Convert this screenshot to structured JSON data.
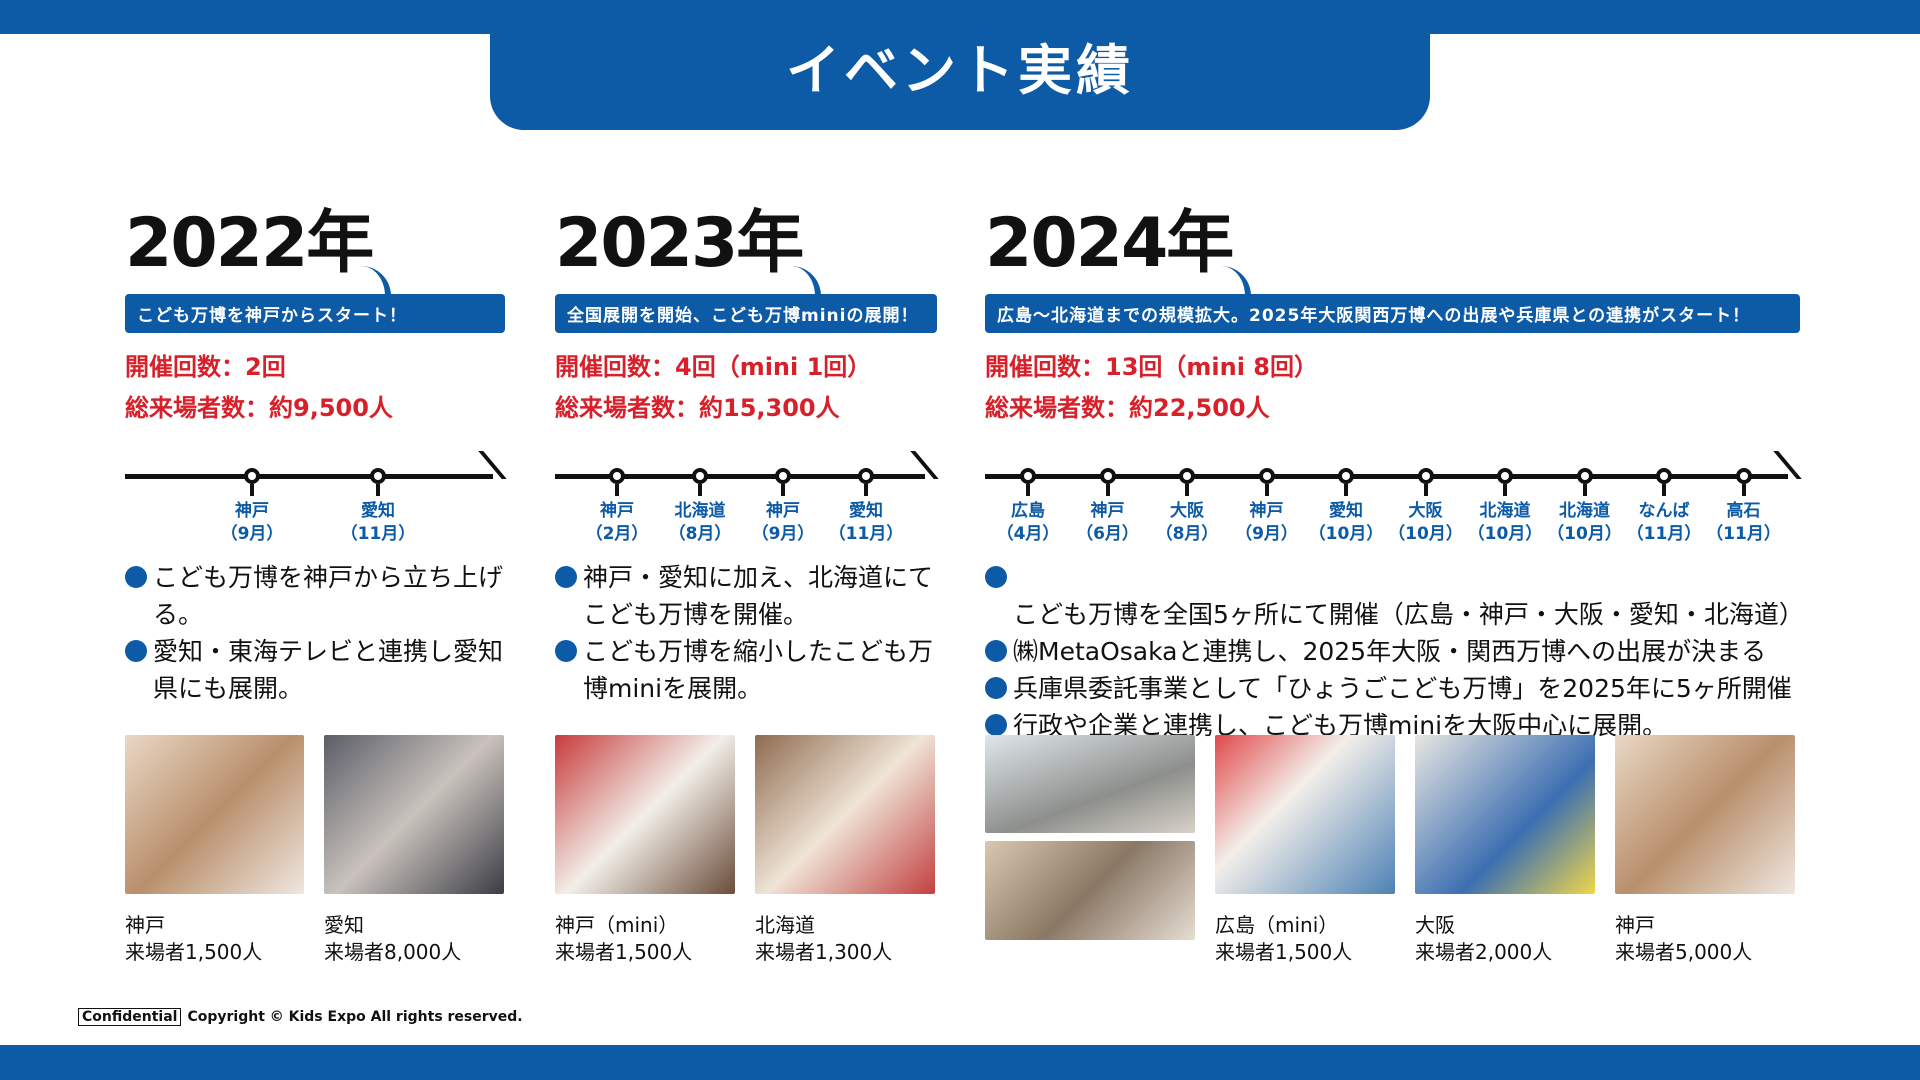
{
  "title": "イベント実績",
  "colors": {
    "brand": "#0d5aa7",
    "accent_red": "#d8202a"
  },
  "columns": [
    {
      "year": "2022年",
      "banner": "こども万博を神戸からスタート！",
      "stats": [
        "開催回数：2回",
        "総来場者数：約9,500人"
      ],
      "timeline": [
        {
          "city": "神戸",
          "month": "（9月）"
        },
        {
          "city": "愛知",
          "month": "（11月）"
        }
      ],
      "bullets": [
        "こども万博を神戸から立ち上げる。",
        "愛知・東海テレビと連携し愛知県にも展開。"
      ],
      "photos": [
        {
          "place": "神戸",
          "visitors": "来場者1,500人"
        },
        {
          "place": "愛知",
          "visitors": "来場者8,000人"
        }
      ]
    },
    {
      "year": "2023年",
      "banner": "全国展開を開始、こども万博miniの展開！",
      "stats": [
        "開催回数：4回（mini 1回）",
        "総来場者数：約15,300人"
      ],
      "timeline": [
        {
          "city": "神戸",
          "month": "（2月）"
        },
        {
          "city": "北海道",
          "month": "（8月）"
        },
        {
          "city": "神戸",
          "month": "（9月）"
        },
        {
          "city": "愛知",
          "month": "（11月）"
        }
      ],
      "bullets": [
        "神戸・愛知に加え、北海道にてこども万博を開催。",
        "こども万博を縮小したこども万博miniを展開。"
      ],
      "photos": [
        {
          "place": "神戸（mini）",
          "visitors": "来場者1,500人"
        },
        {
          "place": "北海道",
          "visitors": "来場者1,300人"
        }
      ]
    },
    {
      "year": "2024年",
      "banner": "広島〜北海道までの規模拡大。2025年大阪関西万博への出展や兵庫県との連携がスタート！",
      "stats": [
        "開催回数：13回（mini 8回）",
        "総来場者数：約22,500人"
      ],
      "timeline": [
        {
          "city": "広島",
          "month": "（4月）"
        },
        {
          "city": "神戸",
          "month": "（6月）"
        },
        {
          "city": "大阪",
          "month": "（8月）"
        },
        {
          "city": "神戸",
          "month": "（9月）"
        },
        {
          "city": "愛知",
          "month": "（10月）"
        },
        {
          "city": "大阪",
          "month": "（10月）"
        },
        {
          "city": "北海道",
          "month": "（10月）"
        },
        {
          "city": "北海道",
          "month": "（10月）"
        },
        {
          "city": "なんば",
          "month": "（11月）"
        },
        {
          "city": "高石",
          "month": "（11月）"
        }
      ],
      "bullets": [
        "こども万博を全国5ヶ所にて開催（広島・神戸・大阪・愛知・北海道）",
        "㈱MetaOsakaと連携し、2025年大阪・関西万博への出展が決まる",
        "兵庫県委託事業として「ひょうごこども万博」を2025年に5ヶ所開催",
        "行政や企業と連携し、こども万博miniを大阪中心に展開。"
      ],
      "photos": [
        {
          "place": "",
          "visitors": ""
        },
        {
          "place": "広島（mini）",
          "visitors": "来場者1,500人"
        },
        {
          "place": "大阪",
          "visitors": "来場者2,000人"
        },
        {
          "place": "神戸",
          "visitors": "来場者5,000人"
        }
      ]
    }
  ],
  "footer": {
    "confidential": "Confidential",
    "copyright": "Copyright © Kids Expo All rights reserved."
  }
}
